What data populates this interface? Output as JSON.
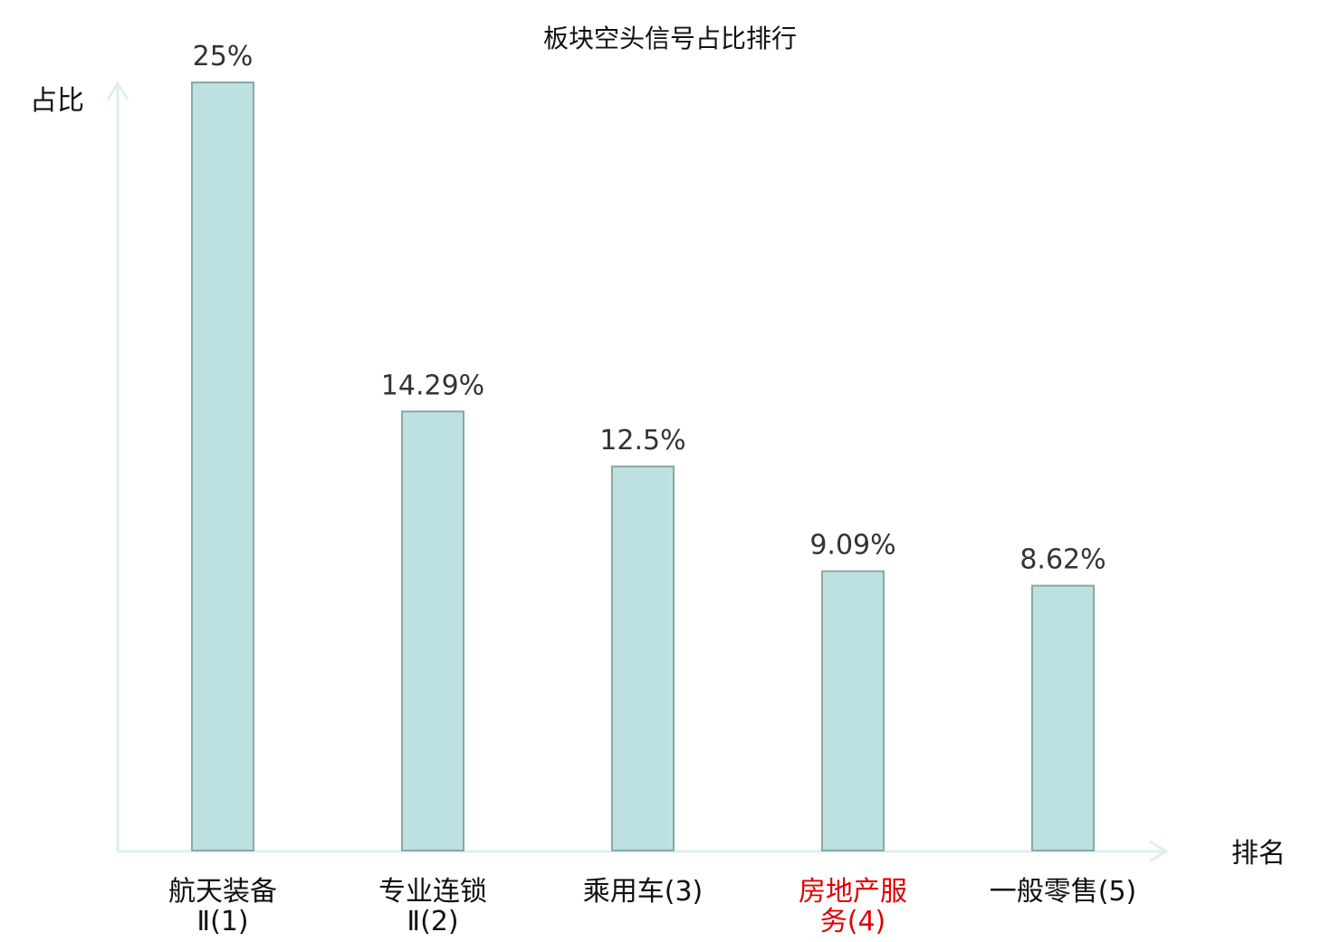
{
  "chart_data": {
    "type": "bar",
    "title": "板块空头信号占比排行",
    "ylabel": "占比",
    "xlabel": "排名",
    "ylim": [
      0,
      25
    ],
    "grid": false,
    "legend": "none",
    "categories": [
      {
        "lines": [
          "航天装备",
          "Ⅱ(1)"
        ],
        "highlight": false
      },
      {
        "lines": [
          "专业连锁",
          "Ⅱ(2)"
        ],
        "highlight": false
      },
      {
        "lines": [
          "乘用车(3)"
        ],
        "highlight": false
      },
      {
        "lines": [
          "房地产服",
          "务(4)"
        ],
        "highlight": true
      },
      {
        "lines": [
          "一般零售(5)"
        ],
        "highlight": false
      }
    ],
    "values": [
      25,
      14.29,
      12.5,
      9.09,
      8.62
    ],
    "value_labels": [
      "25%",
      "14.29%",
      "12.5%",
      "9.09%",
      "8.62%"
    ]
  },
  "colors": {
    "bar_fill": "#bde0e1",
    "bar_stroke": "#8aa8a8",
    "axis": "#dcf0ee",
    "text": "#111111",
    "label_text": "#333333",
    "highlight": "#e00000"
  }
}
